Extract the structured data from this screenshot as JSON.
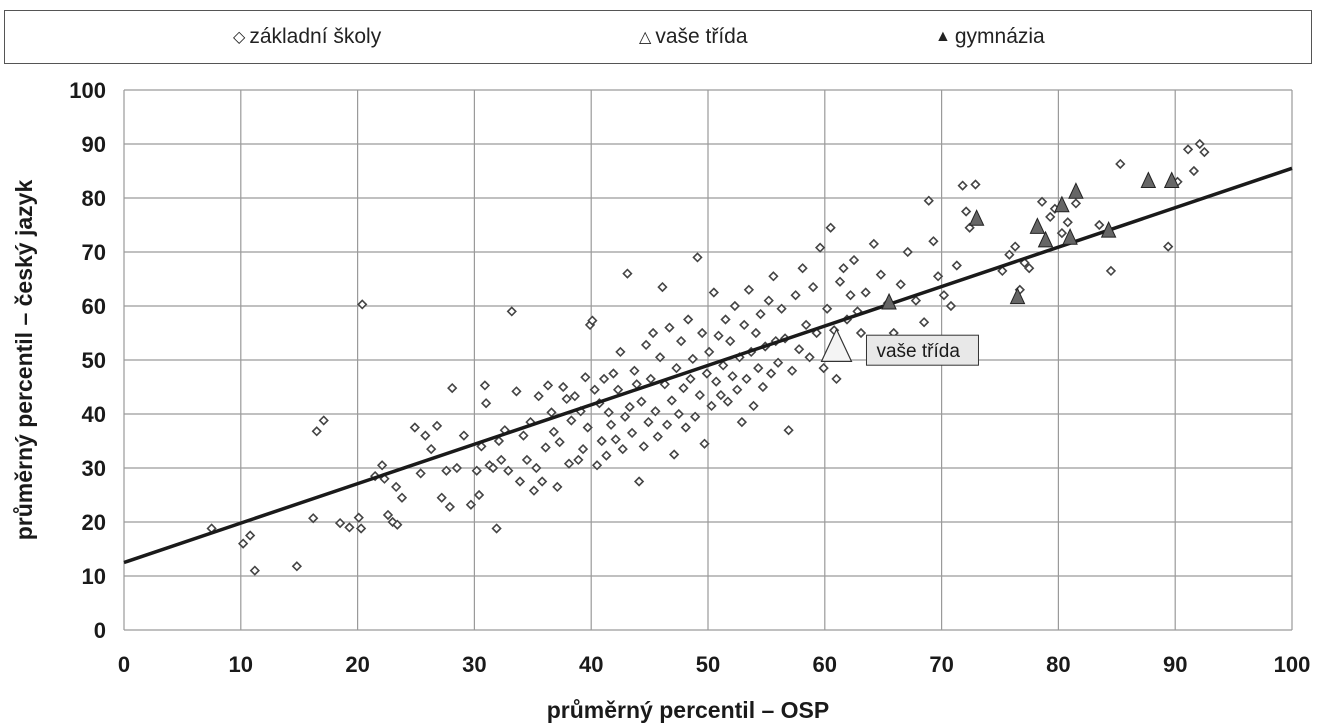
{
  "legend": {
    "items": [
      {
        "label": "základní školy",
        "symbol": "diamond-icon"
      },
      {
        "label": "vaše třída",
        "symbol": "triangle-outline-icon"
      },
      {
        "label": "gymnázia",
        "symbol": "triangle-filled-icon"
      }
    ],
    "placement": "top"
  },
  "chart_data": {
    "type": "scatter",
    "title": "",
    "xlabel": "průměrný percentil – OSP",
    "ylabel": "průměrný percentil – český jazyk",
    "xlim": [
      0,
      100
    ],
    "ylim": [
      0,
      100
    ],
    "xticks": [
      "0",
      "10",
      "20",
      "30",
      "40",
      "50",
      "60",
      "70",
      "80",
      "90",
      "100"
    ],
    "yticks": [
      "0",
      "10",
      "20",
      "30",
      "40",
      "50",
      "60",
      "70",
      "80",
      "90",
      "100"
    ],
    "grid": true,
    "trendline": {
      "x": [
        0,
        100
      ],
      "y": [
        12.5,
        85.5
      ]
    },
    "annotation": {
      "text": "vaše třída",
      "x": 61,
      "y": 52
    },
    "colors": {
      "points": "#444444",
      "gymnazia": "#666666",
      "trend": "#1a1a1a",
      "grid": "#9a9a9a"
    },
    "series": [
      {
        "name": "základní školy",
        "marker": "diamond",
        "points": [
          [
            7.5,
            18.8
          ],
          [
            10.2,
            16
          ],
          [
            10.8,
            17.5
          ],
          [
            11.2,
            11
          ],
          [
            14.8,
            11.8
          ],
          [
            16.2,
            20.7
          ],
          [
            16.5,
            36.8
          ],
          [
            17.1,
            38.8
          ],
          [
            18.5,
            19.8
          ],
          [
            19.3,
            19
          ],
          [
            20.1,
            20.8
          ],
          [
            20.3,
            18.8
          ],
          [
            20.4,
            60.3
          ],
          [
            21.5,
            28.5
          ],
          [
            22.1,
            30.5
          ],
          [
            22.3,
            28
          ],
          [
            22.6,
            21.3
          ],
          [
            23,
            20
          ],
          [
            23.3,
            26.5
          ],
          [
            23.4,
            19.5
          ],
          [
            23.8,
            24.5
          ],
          [
            24.9,
            37.5
          ],
          [
            25.4,
            29
          ],
          [
            25.8,
            36
          ],
          [
            26.3,
            33.5
          ],
          [
            26.8,
            37.8
          ],
          [
            27.2,
            24.5
          ],
          [
            27.6,
            29.5
          ],
          [
            27.9,
            22.8
          ],
          [
            28.1,
            44.8
          ],
          [
            28.5,
            30
          ],
          [
            29.1,
            36
          ],
          [
            29.7,
            23.2
          ],
          [
            30.2,
            29.5
          ],
          [
            30.4,
            25
          ],
          [
            30.6,
            34
          ],
          [
            30.9,
            45.3
          ],
          [
            31,
            42
          ],
          [
            31.3,
            30.5
          ],
          [
            31.6,
            30
          ],
          [
            31.9,
            18.8
          ],
          [
            32.1,
            35
          ],
          [
            32.3,
            31.5
          ],
          [
            32.6,
            37
          ],
          [
            32.9,
            29.5
          ],
          [
            33.2,
            59
          ],
          [
            33.6,
            44.2
          ],
          [
            33.9,
            27.5
          ],
          [
            34.2,
            36
          ],
          [
            34.5,
            31.5
          ],
          [
            34.8,
            38.5
          ],
          [
            35.1,
            25.8
          ],
          [
            35.3,
            30
          ],
          [
            35.5,
            43.3
          ],
          [
            35.8,
            27.5
          ],
          [
            36.1,
            33.8
          ],
          [
            36.3,
            45.3
          ],
          [
            36.6,
            40.3
          ],
          [
            36.8,
            36.7
          ],
          [
            37.1,
            26.5
          ],
          [
            37.3,
            34.8
          ],
          [
            37.6,
            45
          ],
          [
            37.9,
            42.8
          ],
          [
            38.1,
            30.8
          ],
          [
            38.3,
            38.8
          ],
          [
            38.6,
            43.3
          ],
          [
            38.9,
            31.5
          ],
          [
            39.1,
            40.5
          ],
          [
            39.3,
            33.5
          ],
          [
            39.5,
            46.8
          ],
          [
            39.7,
            37.5
          ],
          [
            39.9,
            56.5
          ],
          [
            40.1,
            57.3
          ],
          [
            40.3,
            44.5
          ],
          [
            40.5,
            30.5
          ],
          [
            40.7,
            42
          ],
          [
            40.9,
            35
          ],
          [
            41.1,
            46.5
          ],
          [
            41.3,
            32.3
          ],
          [
            41.5,
            40.3
          ],
          [
            41.7,
            38
          ],
          [
            41.9,
            47.5
          ],
          [
            42.1,
            35.3
          ],
          [
            42.3,
            44.5
          ],
          [
            42.5,
            51.5
          ],
          [
            42.7,
            33.5
          ],
          [
            42.9,
            39.5
          ],
          [
            43.1,
            66
          ],
          [
            43.3,
            41.3
          ],
          [
            43.5,
            36.5
          ],
          [
            43.7,
            48
          ],
          [
            43.9,
            45.5
          ],
          [
            44.1,
            27.5
          ],
          [
            44.3,
            42.3
          ],
          [
            44.5,
            34
          ],
          [
            44.7,
            52.8
          ],
          [
            44.9,
            38.5
          ],
          [
            45.1,
            46.5
          ],
          [
            45.3,
            55
          ],
          [
            45.5,
            40.5
          ],
          [
            45.7,
            35.8
          ],
          [
            45.9,
            50.5
          ],
          [
            46.1,
            63.5
          ],
          [
            46.3,
            45.5
          ],
          [
            46.5,
            38
          ],
          [
            46.7,
            56
          ],
          [
            46.9,
            42.5
          ],
          [
            47.1,
            32.5
          ],
          [
            47.3,
            48.5
          ],
          [
            47.5,
            40
          ],
          [
            47.7,
            53.5
          ],
          [
            47.9,
            44.8
          ],
          [
            48.1,
            37.5
          ],
          [
            48.3,
            57.5
          ],
          [
            48.5,
            46.5
          ],
          [
            48.7,
            50.2
          ],
          [
            48.9,
            39.5
          ],
          [
            49.1,
            69
          ],
          [
            49.3,
            43.5
          ],
          [
            49.5,
            55
          ],
          [
            49.7,
            34.5
          ],
          [
            49.9,
            47.5
          ],
          [
            50.1,
            51.5
          ],
          [
            50.3,
            41.5
          ],
          [
            50.5,
            62.5
          ],
          [
            50.7,
            46
          ],
          [
            50.9,
            54.5
          ],
          [
            51.1,
            43.5
          ],
          [
            51.3,
            49
          ],
          [
            51.5,
            57.5
          ],
          [
            51.7,
            42.3
          ],
          [
            51.9,
            53.5
          ],
          [
            52.1,
            47
          ],
          [
            52.3,
            60
          ],
          [
            52.5,
            44.5
          ],
          [
            52.7,
            50.5
          ],
          [
            52.9,
            38.5
          ],
          [
            53.1,
            56.5
          ],
          [
            53.3,
            46.5
          ],
          [
            53.5,
            63
          ],
          [
            53.7,
            51.5
          ],
          [
            53.9,
            41.5
          ],
          [
            54.1,
            55
          ],
          [
            54.3,
            48.5
          ],
          [
            54.5,
            58.5
          ],
          [
            54.7,
            45
          ],
          [
            54.9,
            52.5
          ],
          [
            55.2,
            61
          ],
          [
            55.4,
            47.5
          ],
          [
            55.6,
            65.5
          ],
          [
            55.8,
            53.5
          ],
          [
            56,
            49.5
          ],
          [
            56.3,
            59.5
          ],
          [
            56.6,
            54
          ],
          [
            56.9,
            37
          ],
          [
            57.2,
            48
          ],
          [
            57.5,
            62
          ],
          [
            57.8,
            52
          ],
          [
            58.1,
            67
          ],
          [
            58.4,
            56.5
          ],
          [
            58.7,
            50.5
          ],
          [
            59,
            63.5
          ],
          [
            59.3,
            55
          ],
          [
            59.6,
            70.8
          ],
          [
            59.9,
            48.5
          ],
          [
            60.2,
            59.5
          ],
          [
            60.5,
            74.5
          ],
          [
            60.8,
            55.5
          ],
          [
            61,
            46.5
          ],
          [
            61.3,
            64.5
          ],
          [
            61.6,
            67
          ],
          [
            61.9,
            57.5
          ],
          [
            62.2,
            62
          ],
          [
            62.5,
            68.5
          ],
          [
            62.8,
            59
          ],
          [
            63.1,
            55
          ],
          [
            63.5,
            62.5
          ],
          [
            64.2,
            71.5
          ],
          [
            64.8,
            65.8
          ],
          [
            65.4,
            60.5
          ],
          [
            65.9,
            55
          ],
          [
            66.5,
            64
          ],
          [
            67.1,
            70
          ],
          [
            67.8,
            61
          ],
          [
            68.5,
            57
          ],
          [
            68.9,
            79.5
          ],
          [
            69.3,
            72
          ],
          [
            69.7,
            65.5
          ],
          [
            70.2,
            62
          ],
          [
            70.8,
            60
          ],
          [
            71.3,
            67.5
          ],
          [
            71.8,
            82.3
          ],
          [
            72.1,
            77.5
          ],
          [
            72.4,
            74.5
          ],
          [
            72.9,
            82.5
          ],
          [
            75.2,
            66.5
          ],
          [
            75.8,
            69.5
          ],
          [
            76.3,
            71
          ],
          [
            76.7,
            63
          ],
          [
            77.1,
            68
          ],
          [
            77.5,
            67
          ],
          [
            78.6,
            79.3
          ],
          [
            79.3,
            76.5
          ],
          [
            79.7,
            78
          ],
          [
            80.3,
            73.5
          ],
          [
            80.8,
            75.5
          ],
          [
            81.5,
            79
          ],
          [
            83.5,
            75
          ],
          [
            84.5,
            66.5
          ],
          [
            85.3,
            86.3
          ],
          [
            89.4,
            71
          ],
          [
            90.2,
            83
          ],
          [
            91.1,
            89
          ],
          [
            91.6,
            85
          ],
          [
            92.1,
            90
          ],
          [
            92.5,
            88.5
          ]
        ]
      },
      {
        "name": "vaše třída",
        "marker": "triangle-outline",
        "points": [
          [
            61,
            52
          ]
        ]
      },
      {
        "name": "gymnázia",
        "marker": "triangle-filled",
        "points": [
          [
            65.5,
            60.5
          ],
          [
            73,
            76
          ],
          [
            76.5,
            61.5
          ],
          [
            78.2,
            74.5
          ],
          [
            78.9,
            72
          ],
          [
            80.3,
            78.5
          ],
          [
            81,
            72.5
          ],
          [
            81.5,
            81
          ],
          [
            84.3,
            73.8
          ],
          [
            87.7,
            83
          ],
          [
            89.7,
            83
          ]
        ]
      }
    ]
  }
}
